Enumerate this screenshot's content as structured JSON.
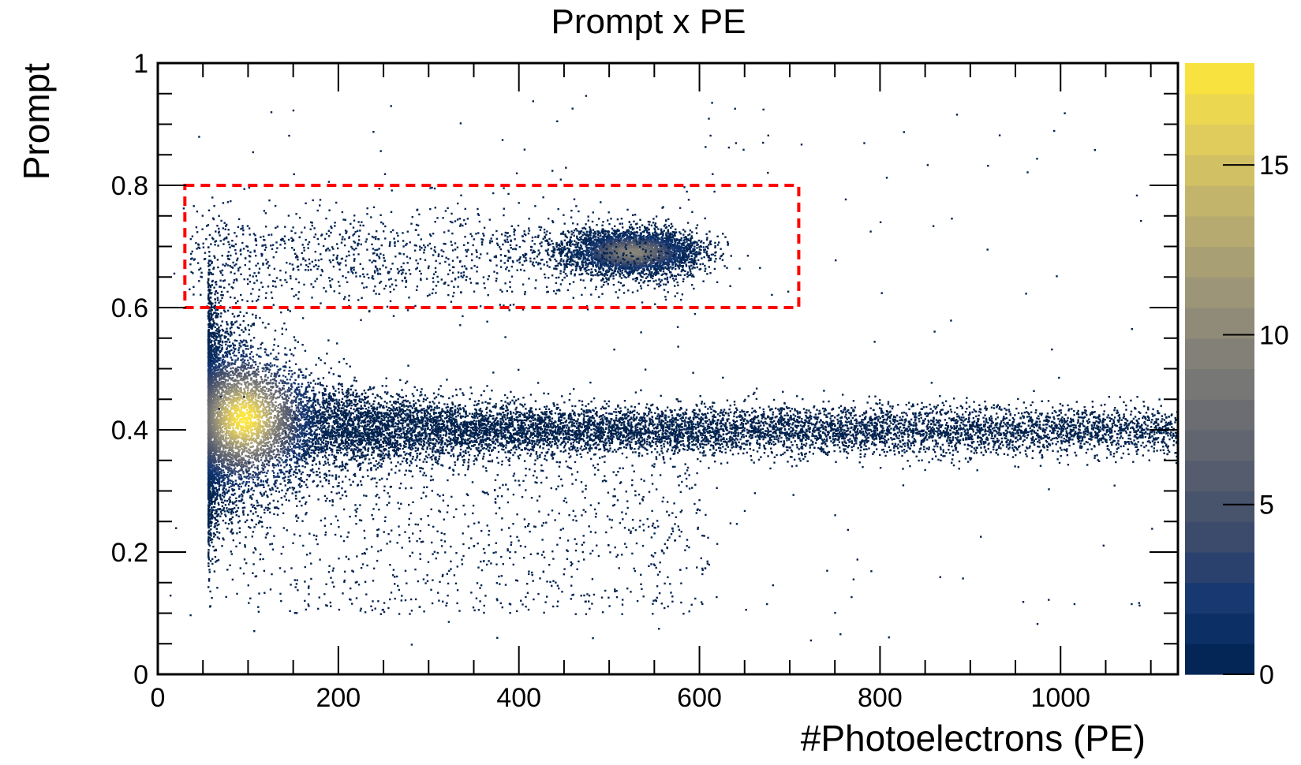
{
  "chart_data": {
    "type": "scatter",
    "title": "Prompt x PE",
    "xlabel": "#Photoelectrons (PE)",
    "ylabel": "Prompt",
    "xlim": [
      0,
      1130
    ],
    "ylim": [
      0,
      1
    ],
    "x_ticks": [
      0,
      200,
      400,
      600,
      800,
      1000
    ],
    "x_tick_labels": [
      "0",
      "200",
      "400",
      "600",
      "800",
      "1000"
    ],
    "y_ticks": [
      0,
      0.2,
      0.4,
      0.6,
      0.8,
      1
    ],
    "y_tick_labels": [
      "0",
      "0.2",
      "0.4",
      "0.6",
      "0.8",
      "1"
    ],
    "grid": false,
    "colorbar": {
      "range": [
        0,
        18
      ],
      "ticks": [
        0,
        5,
        10,
        15
      ],
      "tick_labels": [
        "0",
        "5",
        "10",
        "15"
      ],
      "colormap": "cividis",
      "colors": [
        "#00224e",
        "#123570",
        "#3b496c",
        "#575d6d",
        "#707173",
        "#8a8779",
        "#a69d75",
        "#c4b56c",
        "#e4cf5b",
        "#fee838"
      ]
    },
    "selection_box": {
      "x_range": [
        30,
        710
      ],
      "y_range": [
        0.6,
        0.8
      ],
      "color": "#ff0000",
      "style": "dashed"
    },
    "populations": [
      {
        "description_id": "main-band",
        "x_range": [
          55,
          1130
        ],
        "y_center_at_low_x": 0.42,
        "y_center_at_high_x": 0.4,
        "peak_x": 100,
        "peak_y": 0.42
      },
      {
        "description_id": "upper-cluster",
        "x_center": 530,
        "y_center": 0.69,
        "x_range": [
          30,
          630
        ],
        "y_range": [
          0.62,
          0.76
        ]
      }
    ]
  }
}
